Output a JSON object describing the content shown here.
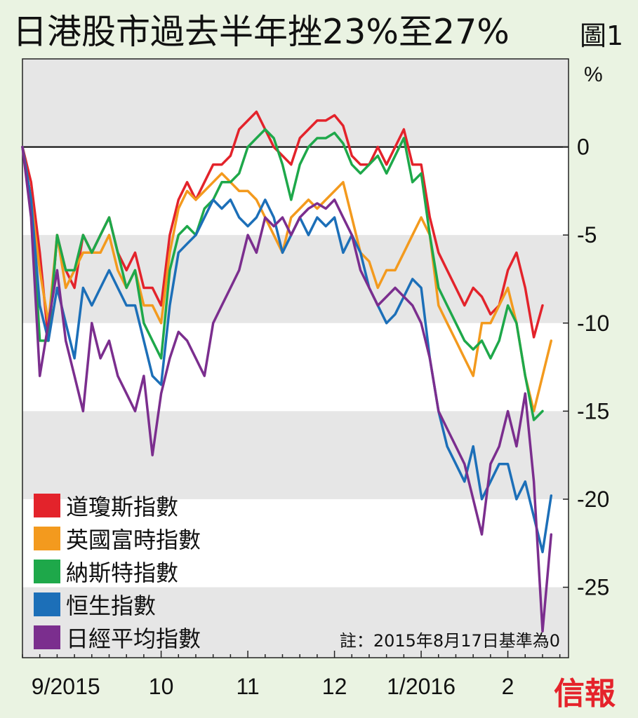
{
  "header": {
    "title": "日港股市過去半年挫23%至27%",
    "figure_label": "圖1"
  },
  "brand": "信報",
  "chart_data": {
    "type": "line",
    "unit": "%",
    "note": "註：2015年8月17日基準為0",
    "ylim": [
      -29,
      5
    ],
    "xlim": [
      0,
      31.5
    ],
    "y_ticks": [
      0,
      -5,
      -10,
      -15,
      -20,
      -25
    ],
    "y_tick_labels": [
      "0",
      "-5",
      "-10",
      "-15",
      "-20",
      "-25"
    ],
    "x_ticks": [
      {
        "pos": 2.5,
        "label": "9/2015"
      },
      {
        "pos": 8,
        "label": "10"
      },
      {
        "pos": 13,
        "label": "11"
      },
      {
        "pos": 18,
        "label": "12"
      },
      {
        "pos": 23,
        "label": "1/2016"
      },
      {
        "pos": 28,
        "label": "2"
      }
    ],
    "shaded_bands": [
      [
        0,
        5
      ],
      [
        -10,
        -5
      ],
      [
        -20,
        -15
      ],
      [
        -29,
        -25
      ]
    ],
    "colors": {
      "dow": "#e3232b",
      "ftse": "#f39a1e",
      "nasdaq": "#1ea84a",
      "hsi": "#1c6fb8",
      "nikkei": "#7b2e8e"
    },
    "series": [
      {
        "key": "dow",
        "name": "道瓊斯指數",
        "x": [
          0,
          0.5,
          1,
          1.5,
          2,
          2.5,
          3,
          3.5,
          4,
          4.5,
          5,
          5.5,
          6,
          6.5,
          7,
          7.5,
          8,
          8.5,
          9,
          9.5,
          10,
          10.5,
          11,
          11.5,
          12,
          12.5,
          13,
          13.5,
          14,
          14.5,
          15,
          15.5,
          16,
          16.5,
          17,
          17.5,
          18,
          18.5,
          19,
          19.5,
          20,
          20.5,
          21,
          21.5,
          22,
          22.5,
          23,
          23.5,
          24,
          24.5,
          25,
          25.5,
          26,
          26.5,
          27,
          27.5,
          28,
          28.5,
          29,
          29.5,
          30
        ],
        "y": [
          0,
          -2,
          -6,
          -11,
          -5,
          -7,
          -8,
          -5,
          -6,
          -5,
          -4,
          -6,
          -7,
          -6,
          -8,
          -8,
          -9,
          -5,
          -3,
          -2,
          -3,
          -2,
          -1,
          -1,
          -0.5,
          1,
          1.5,
          2,
          1,
          0,
          -0.5,
          -1,
          0.5,
          1,
          1.5,
          1.5,
          1.8,
          1.2,
          -0.5,
          -1,
          -1,
          0,
          -1,
          0,
          1,
          -1,
          -1,
          -4,
          -6,
          -7,
          -8,
          -9,
          -8,
          -8.5,
          -9.5,
          -9,
          -7,
          -6,
          -8,
          -10.8,
          -9
        ]
      },
      {
        "key": "ftse",
        "name": "英國富時指數",
        "x": [
          0,
          0.5,
          1,
          1.5,
          2,
          2.5,
          3,
          3.5,
          4,
          4.5,
          5,
          5.5,
          6,
          6.5,
          7,
          7.5,
          8,
          8.5,
          9,
          9.5,
          10,
          10.5,
          11,
          11.5,
          12,
          12.5,
          13,
          13.5,
          14,
          14.5,
          15,
          15.5,
          16,
          16.5,
          17,
          17.5,
          18,
          18.5,
          19,
          19.5,
          20,
          20.5,
          21,
          21.5,
          22,
          22.5,
          23,
          23.5,
          24,
          24.5,
          25,
          25.5,
          26,
          26.5,
          27,
          27.5,
          28,
          28.5,
          29,
          29.5,
          30,
          30.5
        ],
        "y": [
          0,
          -3,
          -7,
          -10,
          -5,
          -8,
          -7,
          -6,
          -6,
          -6,
          -5,
          -7,
          -8,
          -7,
          -9,
          -9,
          -10,
          -6,
          -3.5,
          -2.5,
          -3,
          -2.5,
          -2,
          -1.5,
          -2,
          -2.5,
          -2.5,
          -3,
          -4,
          -5,
          -6,
          -4,
          -3.5,
          -3,
          -3.5,
          -3,
          -2.5,
          -2,
          -4,
          -6,
          -6.5,
          -8,
          -7,
          -7,
          -6,
          -5,
          -4,
          -5,
          -9,
          -10,
          -11,
          -12,
          -13,
          -10,
          -10,
          -9,
          -8,
          -10,
          -13,
          -15,
          -13,
          -11
        ]
      },
      {
        "key": "nasdaq",
        "name": "納斯特指數",
        "x": [
          0,
          0.5,
          1,
          1.5,
          2,
          2.5,
          3,
          3.5,
          4,
          4.5,
          5,
          5.5,
          6,
          6.5,
          7,
          7.5,
          8,
          8.5,
          9,
          9.5,
          10,
          10.5,
          11,
          11.5,
          12,
          12.5,
          13,
          13.5,
          14,
          14.5,
          15,
          15.5,
          16,
          16.5,
          17,
          17.5,
          18,
          18.5,
          19,
          19.5,
          20,
          20.5,
          21,
          21.5,
          22,
          22.5,
          23,
          23.5,
          24,
          24.5,
          25,
          25.5,
          26,
          26.5,
          27,
          27.5,
          28,
          28.5,
          29,
          29.5,
          30
        ],
        "y": [
          0,
          -3,
          -11,
          -11,
          -5,
          -7,
          -7,
          -5,
          -6,
          -5,
          -4,
          -6,
          -8,
          -7,
          -10,
          -11,
          -12,
          -7,
          -5,
          -4.5,
          -5,
          -3.5,
          -3,
          -2,
          -2,
          -1.5,
          0,
          0.5,
          1,
          0.5,
          -1,
          -3,
          -1,
          0,
          0.5,
          0.5,
          0.8,
          0.2,
          -1,
          -1.5,
          -1,
          -0.5,
          -1.5,
          -0.5,
          0.5,
          -2,
          -1.5,
          -5,
          -8,
          -9,
          -10,
          -11,
          -11.5,
          -11,
          -12,
          -11,
          -9,
          -10,
          -13,
          -15.5,
          -15
        ]
      },
      {
        "key": "hsi",
        "name": "恒生指數",
        "x": [
          0,
          0.5,
          1,
          1.5,
          2,
          2.5,
          3,
          3.5,
          4,
          4.5,
          5,
          5.5,
          6,
          6.5,
          7,
          7.5,
          8,
          8.5,
          9,
          9.5,
          10,
          10.5,
          11,
          11.5,
          12,
          12.5,
          13,
          13.5,
          14,
          14.5,
          15,
          15.5,
          16,
          16.5,
          17,
          17.5,
          18,
          18.5,
          19,
          19.5,
          20,
          20.5,
          21,
          21.5,
          22,
          22.5,
          23,
          23.5,
          24,
          24.5,
          25,
          25.5,
          26,
          26.5,
          27,
          27.5,
          28,
          28.5,
          29,
          29.5,
          30,
          30.5
        ],
        "y": [
          0,
          -3,
          -9,
          -11,
          -8,
          -10,
          -12,
          -8,
          -9,
          -8,
          -7,
          -8,
          -9,
          -9,
          -11,
          -13,
          -13.5,
          -9,
          -6,
          -5.5,
          -5,
          -4,
          -3,
          -3.5,
          -3,
          -4,
          -4.5,
          -4,
          -3,
          -4,
          -6,
          -5,
          -4,
          -5,
          -4,
          -4.5,
          -4,
          -6,
          -5,
          -6,
          -8,
          -9,
          -10,
          -9.5,
          -8.5,
          -7.5,
          -8,
          -12,
          -15,
          -17,
          -18,
          -19,
          -17,
          -20,
          -19,
          -18,
          -18,
          -20,
          -19,
          -21,
          -23,
          -19.8
        ]
      },
      {
        "key": "nikkei",
        "name": "日經平均指數",
        "x": [
          0,
          0.5,
          1,
          1.5,
          2,
          2.5,
          3,
          3.5,
          4,
          4.5,
          5,
          5.5,
          6,
          6.5,
          7,
          7.5,
          8,
          8.5,
          9,
          9.5,
          10,
          10.5,
          11,
          11.5,
          12,
          12.5,
          13,
          13.5,
          14,
          14.5,
          15,
          15.5,
          16,
          16.5,
          17,
          17.5,
          18,
          18.5,
          19,
          19.5,
          20,
          20.5,
          21,
          21.5,
          22,
          22.5,
          23,
          23.5,
          24,
          24.5,
          25,
          25.5,
          26,
          26.5,
          27,
          27.5,
          28,
          28.5,
          29,
          29.5,
          30,
          30.5
        ],
        "y": [
          0,
          -4,
          -13,
          -10,
          -7,
          -11,
          -13,
          -15,
          -10,
          -12,
          -11,
          -13,
          -14,
          -15,
          -13,
          -17.5,
          -14,
          -12,
          -10.5,
          -11,
          -12,
          -13,
          -10,
          -9,
          -8,
          -7,
          -5,
          -6,
          -4,
          -4.5,
          -4,
          -5,
          -4,
          -3.5,
          -3.2,
          -3.5,
          -3,
          -4,
          -5,
          -7,
          -8,
          -9,
          -8.5,
          -8,
          -8.5,
          -9,
          -10,
          -12,
          -15,
          -16,
          -17,
          -18,
          -20,
          -22,
          -18,
          -17,
          -15,
          -17,
          -14,
          -19,
          -27.5,
          -22
        ]
      }
    ]
  }
}
